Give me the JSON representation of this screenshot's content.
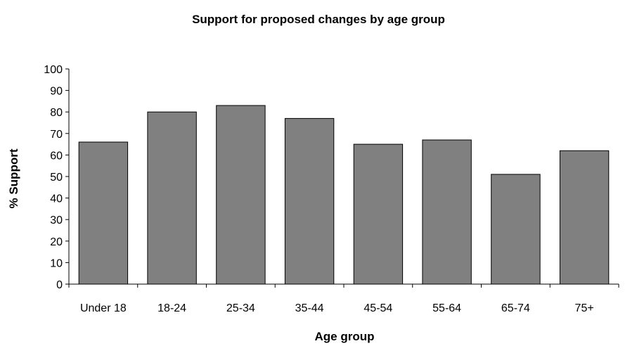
{
  "chart_data": {
    "type": "bar",
    "title": "Support for proposed changes by age group",
    "xlabel": "Age group",
    "ylabel": "% Support",
    "categories": [
      "Under 18",
      "18-24",
      "25-34",
      "35-44",
      "45-54",
      "55-64",
      "65-74",
      "75+"
    ],
    "values": [
      66,
      80,
      83,
      77,
      65,
      67,
      51,
      62
    ],
    "ylim": [
      0,
      100
    ],
    "yticks": [
      0,
      10,
      20,
      30,
      40,
      50,
      60,
      70,
      80,
      90,
      100
    ],
    "grid": false,
    "legend": "none",
    "bar_color": "#808080"
  }
}
